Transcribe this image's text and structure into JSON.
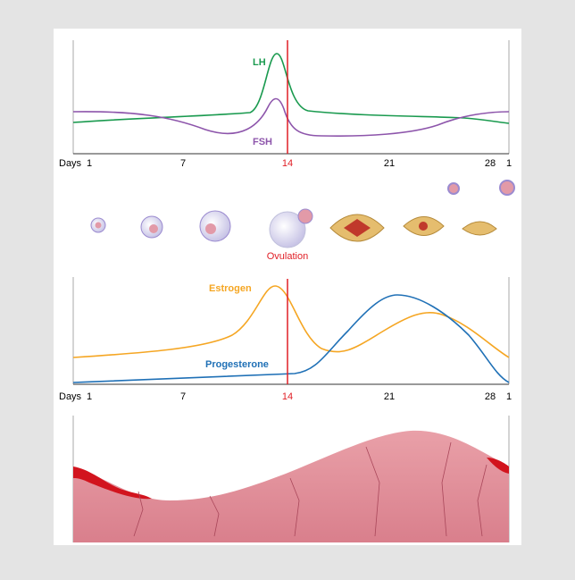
{
  "hormones_chart": {
    "lh_label": "LH",
    "fsh_label": "FSH",
    "days_label": "Days",
    "ticks": [
      "1",
      "7",
      "14",
      "21",
      "28",
      "1"
    ]
  },
  "follicles": {
    "ovulation_label": "Ovulation"
  },
  "ovarian_chart": {
    "estrogen_label": "Estrogen",
    "progesterone_label": "Progesterone",
    "days_label": "Days",
    "ticks": [
      "1",
      "7",
      "14",
      "21",
      "28",
      "1"
    ]
  }
}
